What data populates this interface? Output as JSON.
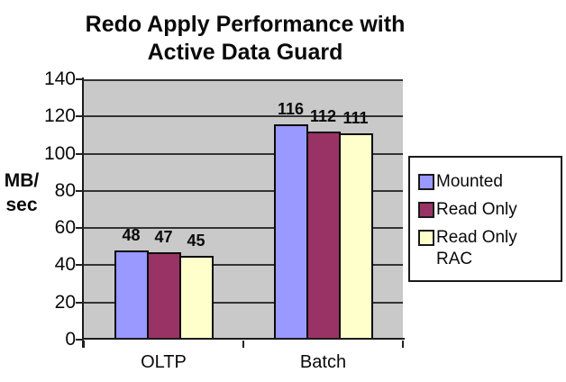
{
  "title": {
    "line1": "Redo Apply Performance with",
    "line2": "Active Data Guard"
  },
  "ylabel": {
    "line1": "MB/",
    "line2": "sec"
  },
  "chart_data": {
    "type": "bar",
    "title": "Redo Apply Performance with Active Data Guard",
    "xlabel": "",
    "ylabel": "MB/sec",
    "categories": [
      "OLTP",
      "Batch"
    ],
    "series": [
      {
        "name": "Mounted",
        "color": "#9999FF",
        "values": [
          48,
          116
        ]
      },
      {
        "name": "Read Only",
        "color": "#993366",
        "values": [
          47,
          112
        ]
      },
      {
        "name": "Read Only RAC",
        "color": "#FFFFCC",
        "values": [
          45,
          111
        ]
      }
    ],
    "ylim": [
      0,
      140
    ],
    "yticks": [
      0,
      20,
      40,
      60,
      80,
      100,
      120,
      140
    ],
    "grid": true,
    "data_labels": true,
    "legend_position": "right",
    "plot_bg": "#C9C9C9",
    "gridline_color": "#333333",
    "bar_border_color": "#0A0A0A"
  }
}
